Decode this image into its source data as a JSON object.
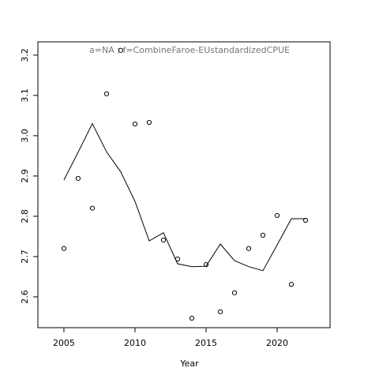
{
  "chart_data": {
    "type": "scatter",
    "title": "a=NA  ;  f=CombineFaroe-EUstandardizedCPUE",
    "x_label": "Year",
    "x": [
      2005,
      2006,
      2007,
      2008,
      2009,
      2010,
      2011,
      2012,
      2013,
      2014,
      2015,
      2016,
      2017,
      2018,
      2019,
      2020,
      2021,
      2022
    ],
    "series": [
      {
        "mark": "points",
        "color": "#000000",
        "values": [
          2.72,
          2.894,
          2.82,
          3.104,
          3.212,
          3.029,
          3.033,
          2.741,
          2.694,
          2.547,
          2.68,
          2.563,
          2.61,
          2.72,
          2.753,
          2.802,
          2.631,
          2.79
        ]
      },
      {
        "mark": "line",
        "color": "#000000",
        "values": [
          2.89,
          2.959,
          3.03,
          2.96,
          2.91,
          2.837,
          2.739,
          2.759,
          2.682,
          2.675,
          2.676,
          2.731,
          2.69,
          2.675,
          2.665,
          2.729,
          2.794,
          2.794
        ]
      }
    ],
    "xlim": [
      2003.17,
      2023.72
    ],
    "ylim": [
      2.5235,
      3.233
    ],
    "xticks": [
      2005,
      2010,
      2015,
      2020
    ],
    "yticks": [
      2.6,
      2.7,
      2.8,
      2.9,
      3.0,
      3.1,
      3.2
    ]
  }
}
